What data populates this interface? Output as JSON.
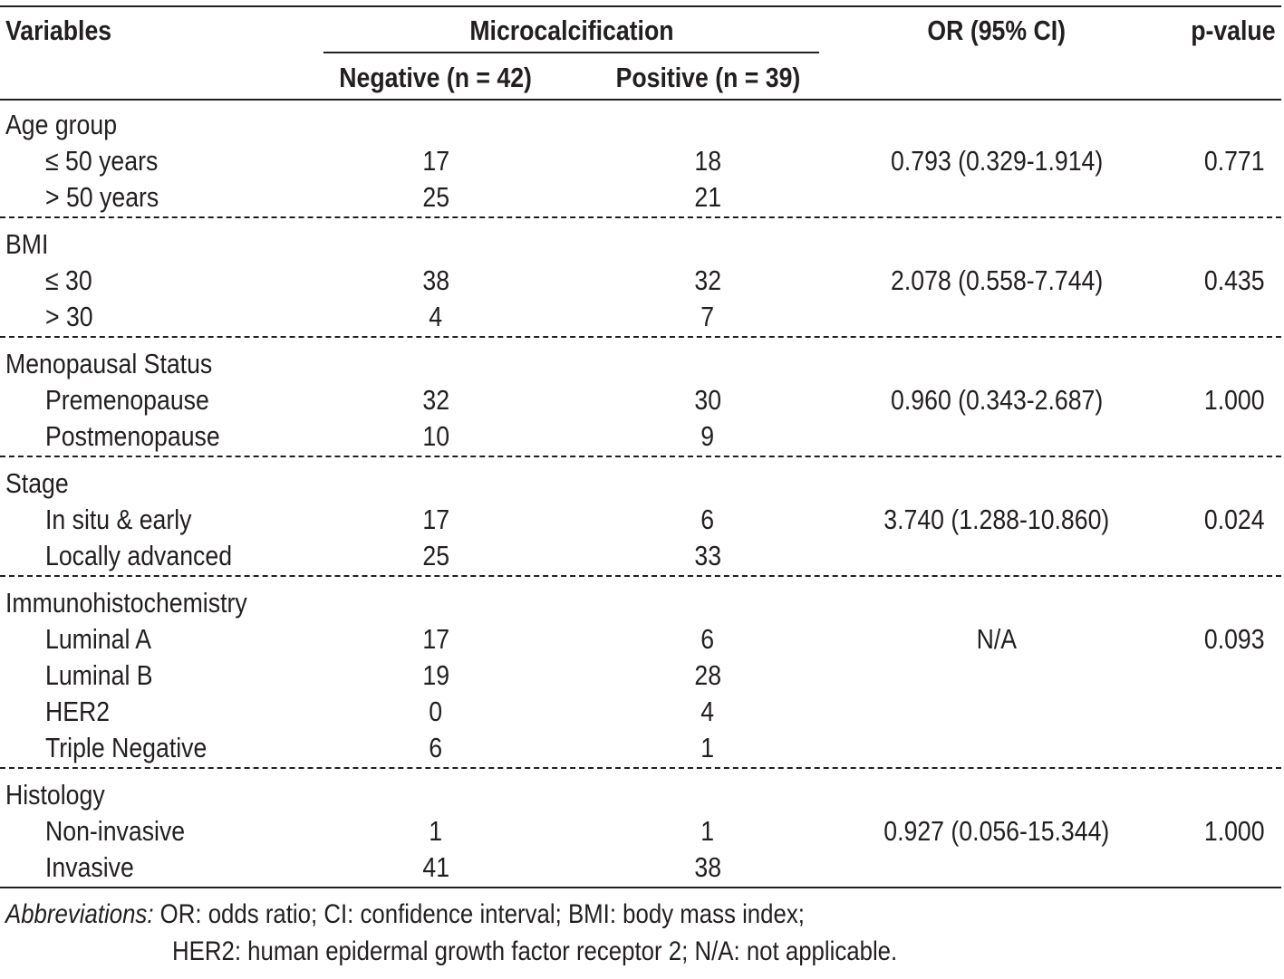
{
  "table": {
    "header": {
      "variables": "Variables",
      "group_title": "Microcalcification",
      "negative": "Negative (n = 42)",
      "positive": "Positive (n = 39)",
      "or_ci": "OR (95% CI)",
      "pvalue": "p-value"
    },
    "groups": [
      {
        "label": "Age group",
        "or_ci": "0.793 (0.329-1.914)",
        "p": "0.771",
        "rows": [
          {
            "label": "≤ 50 years",
            "neg": "17",
            "pos": "18"
          },
          {
            "label": "> 50 years",
            "neg": "25",
            "pos": "21"
          }
        ]
      },
      {
        "label": "BMI",
        "or_ci": "2.078 (0.558-7.744)",
        "p": "0.435",
        "rows": [
          {
            "label": "≤ 30",
            "neg": "38",
            "pos": "32"
          },
          {
            "label": "> 30",
            "neg": "4",
            "pos": "7"
          }
        ]
      },
      {
        "label": "Menopausal Status",
        "or_ci": "0.960 (0.343-2.687)",
        "p": "1.000",
        "rows": [
          {
            "label": "Premenopause",
            "neg": "32",
            "pos": "30"
          },
          {
            "label": "Postmenopause",
            "neg": "10",
            "pos": "9"
          }
        ]
      },
      {
        "label": "Stage",
        "or_ci": "3.740 (1.288-10.860)",
        "p": "0.024",
        "rows": [
          {
            "label": "In situ & early",
            "neg": "17",
            "pos": "6"
          },
          {
            "label": "Locally advanced",
            "neg": "25",
            "pos": "33"
          }
        ]
      },
      {
        "label": "Immunohistochemistry",
        "or_ci": "N/A",
        "p": "0.093",
        "rows": [
          {
            "label": "Luminal A",
            "neg": "17",
            "pos": "6"
          },
          {
            "label": "Luminal B",
            "neg": "19",
            "pos": "28"
          },
          {
            "label": "HER2",
            "neg": "0",
            "pos": "4"
          },
          {
            "label": "Triple Negative",
            "neg": "6",
            "pos": "1"
          }
        ]
      },
      {
        "label": "Histology",
        "or_ci": "0.927 (0.056-15.344)",
        "p": "1.000",
        "rows": [
          {
            "label": "Non-invasive",
            "neg": "1",
            "pos": "1"
          },
          {
            "label": "Invasive",
            "neg": "41",
            "pos": "38"
          }
        ]
      }
    ]
  },
  "footnote": {
    "prefix": "Abbreviations:",
    "line1": "OR: odds ratio; CI: confidence interval; BMI: body mass index;",
    "line2": "HER2: human epidermal growth factor receptor 2; N/A: not applicable."
  }
}
